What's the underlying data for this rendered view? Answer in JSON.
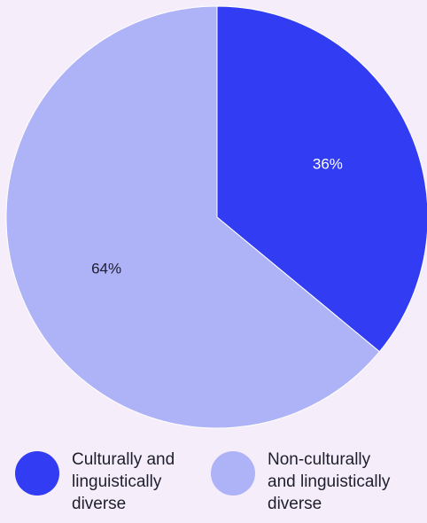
{
  "chart_data": {
    "type": "pie",
    "title": "",
    "slices": [
      {
        "label": "Culturally and\nlinguistically\ndiverse",
        "value": 36,
        "value_label": "36%",
        "color": "#323cf3"
      },
      {
        "label": "Non-culturally\nand linguistically\ndiverse",
        "value": 64,
        "value_label": "64%",
        "color": "#aeb2f7"
      }
    ],
    "legend_position": "bottom",
    "label_colors": [
      "#ffffff",
      "#1e1e2e"
    ],
    "background": "#f5eefa"
  }
}
